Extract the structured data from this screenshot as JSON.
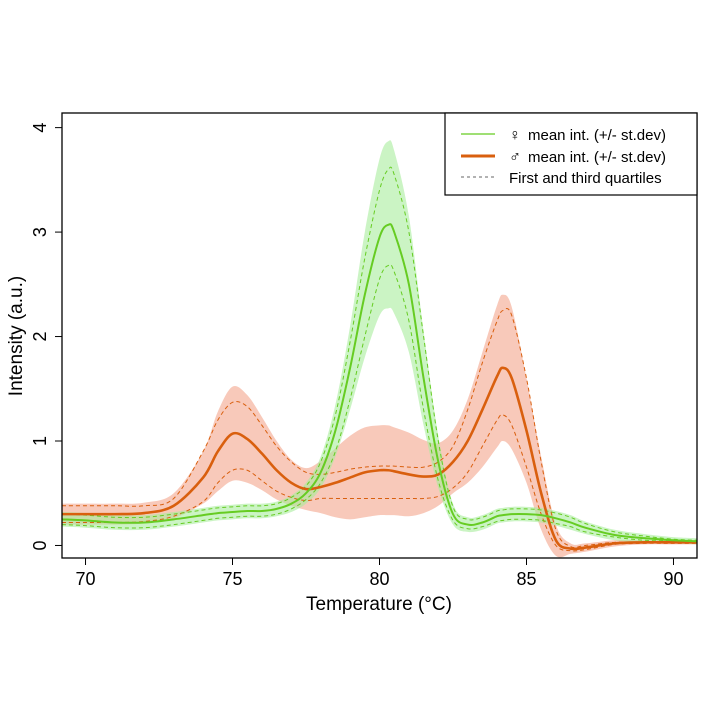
{
  "chart_data": {
    "type": "line",
    "title": "",
    "xlabel": "Temperature (°C)",
    "ylabel": "Intensity (a.u.)",
    "xlim": [
      69.2,
      90.8
    ],
    "ylim": [
      -0.12,
      4.14
    ],
    "xticks": [
      70,
      75,
      80,
      85,
      90
    ],
    "yticks": [
      0,
      1,
      2,
      3,
      4
    ],
    "grid": false,
    "legend_position": "top-right",
    "legend": [
      {
        "symbol": "♀",
        "label": "mean int. (+/- st.dev)",
        "style": "solid-thin",
        "color": "#66cc22"
      },
      {
        "symbol": "♂",
        "label": "mean int. (+/- st.dev)",
        "style": "solid-thick",
        "color": "#d95f0e"
      },
      {
        "symbol": "",
        "label": "First and third quartiles",
        "style": "dashed",
        "color": "#666666"
      }
    ],
    "x": [
      69.2,
      70,
      71,
      72,
      73,
      74,
      74.5,
      75,
      75.5,
      76,
      76.5,
      77,
      77.5,
      78,
      78.5,
      79,
      79.5,
      80,
      80.3,
      80.5,
      81,
      81.5,
      82,
      82.5,
      83,
      83.5,
      84,
      84.2,
      84.5,
      85,
      85.5,
      86,
      86.5,
      87,
      88,
      89,
      90,
      90.8
    ],
    "series": [
      {
        "name": "female",
        "color": "#66cc22",
        "band_color": "#a8ec9c",
        "mean": [
          0.25,
          0.24,
          0.22,
          0.22,
          0.25,
          0.29,
          0.31,
          0.32,
          0.33,
          0.33,
          0.35,
          0.4,
          0.5,
          0.7,
          1.1,
          1.7,
          2.4,
          2.95,
          3.07,
          3.0,
          2.5,
          1.6,
          0.8,
          0.3,
          0.2,
          0.22,
          0.28,
          0.29,
          0.3,
          0.3,
          0.29,
          0.26,
          0.22,
          0.17,
          0.1,
          0.07,
          0.05,
          0.04
        ],
        "sd": [
          0.07,
          0.07,
          0.07,
          0.07,
          0.07,
          0.07,
          0.07,
          0.07,
          0.07,
          0.07,
          0.07,
          0.08,
          0.1,
          0.15,
          0.25,
          0.4,
          0.6,
          0.75,
          0.8,
          0.78,
          0.65,
          0.45,
          0.25,
          0.1,
          0.07,
          0.07,
          0.07,
          0.07,
          0.07,
          0.07,
          0.07,
          0.07,
          0.07,
          0.06,
          0.05,
          0.04,
          0.03,
          0.03
        ],
        "q3": [
          0.3,
          0.29,
          0.27,
          0.27,
          0.3,
          0.34,
          0.36,
          0.37,
          0.38,
          0.38,
          0.4,
          0.46,
          0.57,
          0.8,
          1.25,
          1.95,
          2.75,
          3.4,
          3.6,
          3.55,
          3.0,
          2.0,
          1.0,
          0.37,
          0.25,
          0.27,
          0.33,
          0.34,
          0.35,
          0.35,
          0.34,
          0.31,
          0.27,
          0.21,
          0.13,
          0.09,
          0.06,
          0.05
        ],
        "q1": [
          0.2,
          0.19,
          0.17,
          0.17,
          0.2,
          0.24,
          0.26,
          0.27,
          0.28,
          0.28,
          0.3,
          0.35,
          0.44,
          0.6,
          0.9,
          1.4,
          2.0,
          2.55,
          2.68,
          2.62,
          2.15,
          1.3,
          0.62,
          0.24,
          0.16,
          0.18,
          0.23,
          0.24,
          0.25,
          0.25,
          0.24,
          0.21,
          0.18,
          0.13,
          0.08,
          0.05,
          0.04,
          0.03
        ]
      },
      {
        "name": "male",
        "color": "#d95f0e",
        "band_color": "#f3a58c",
        "mean": [
          0.3,
          0.3,
          0.3,
          0.31,
          0.38,
          0.65,
          0.9,
          1.07,
          1.02,
          0.88,
          0.72,
          0.6,
          0.54,
          0.56,
          0.6,
          0.65,
          0.7,
          0.72,
          0.72,
          0.71,
          0.68,
          0.66,
          0.68,
          0.8,
          1.0,
          1.3,
          1.62,
          1.7,
          1.6,
          1.1,
          0.5,
          0.05,
          -0.03,
          -0.02,
          0.02,
          0.03,
          0.03,
          0.03
        ],
        "sd": [
          0.1,
          0.1,
          0.1,
          0.1,
          0.12,
          0.25,
          0.38,
          0.45,
          0.42,
          0.35,
          0.28,
          0.22,
          0.2,
          0.25,
          0.33,
          0.4,
          0.43,
          0.43,
          0.43,
          0.42,
          0.4,
          0.35,
          0.3,
          0.3,
          0.4,
          0.55,
          0.68,
          0.7,
          0.68,
          0.5,
          0.35,
          0.15,
          0.05,
          0.04,
          0.03,
          0.02,
          0.02,
          0.02
        ],
        "q3": [
          0.38,
          0.38,
          0.38,
          0.38,
          0.45,
          0.9,
          1.2,
          1.37,
          1.33,
          1.15,
          0.95,
          0.8,
          0.7,
          0.68,
          0.7,
          0.73,
          0.75,
          0.76,
          0.76,
          0.76,
          0.75,
          0.75,
          0.8,
          0.95,
          1.3,
          1.75,
          2.15,
          2.25,
          2.2,
          1.6,
          0.8,
          0.15,
          -0.01,
          0,
          0.03,
          0.03,
          0.03,
          0.03
        ],
        "q1": [
          0.22,
          0.22,
          0.22,
          0.23,
          0.28,
          0.42,
          0.6,
          0.72,
          0.72,
          0.62,
          0.52,
          0.46,
          0.43,
          0.45,
          0.45,
          0.45,
          0.45,
          0.45,
          0.45,
          0.45,
          0.45,
          0.45,
          0.47,
          0.55,
          0.7,
          0.95,
          1.2,
          1.25,
          1.15,
          0.75,
          0.3,
          0.0,
          -0.05,
          -0.04,
          0.01,
          0.02,
          0.02,
          0.02
        ]
      }
    ]
  }
}
